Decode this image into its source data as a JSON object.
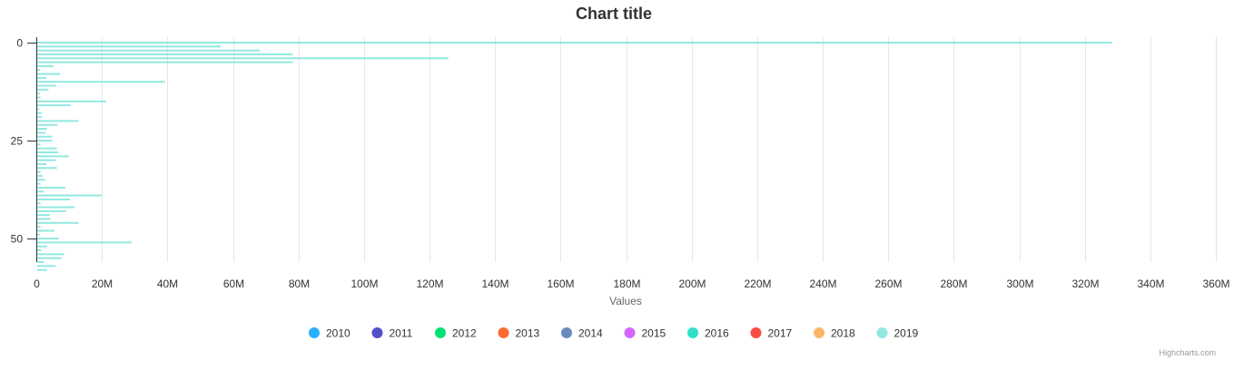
{
  "chart_data": {
    "type": "bar",
    "orientation": "horizontal",
    "title": "Chart title",
    "xlabel": "Values",
    "ylabel": "",
    "value_axis": {
      "min": 0,
      "max": 360000000,
      "ticks": [
        0,
        20000000,
        40000000,
        60000000,
        80000000,
        100000000,
        120000000,
        140000000,
        160000000,
        180000000,
        200000000,
        220000000,
        240000000,
        260000000,
        280000000,
        300000000,
        320000000,
        340000000,
        360000000
      ],
      "tick_labels": [
        "0",
        "20M",
        "40M",
        "60M",
        "80M",
        "100M",
        "120M",
        "140M",
        "160M",
        "180M",
        "200M",
        "220M",
        "240M",
        "260M",
        "280M",
        "300M",
        "320M",
        "340M",
        "360M"
      ],
      "grid": true
    },
    "category_axis": {
      "min": 0,
      "max": 56,
      "ticks": [
        0,
        25,
        50
      ],
      "tick_labels": [
        "0",
        "25",
        "50"
      ]
    },
    "legend": {
      "placement": "bottom-center",
      "items": [
        {
          "name": "2010",
          "color": "#2caffe"
        },
        {
          "name": "2011",
          "color": "#544fc5"
        },
        {
          "name": "2012",
          "color": "#00e272"
        },
        {
          "name": "2013",
          "color": "#fe6a35"
        },
        {
          "name": "2014",
          "color": "#6b8abc"
        },
        {
          "name": "2015",
          "color": "#d568fb"
        },
        {
          "name": "2016",
          "color": "#2ee0ca"
        },
        {
          "name": "2017",
          "color": "#fa4b42"
        },
        {
          "name": "2018",
          "color": "#feb56a"
        },
        {
          "name": "2019",
          "color": "#91e8e1"
        }
      ]
    },
    "series": [
      {
        "name": "2019",
        "color": "#91e8e1",
        "values": [
          328000000,
          56000000,
          68000000,
          78000000,
          125500000,
          78000000,
          5000000,
          800000,
          7000000,
          2800000,
          39000000,
          5800000,
          3400000,
          800000,
          1000000,
          21000000,
          10200000,
          600000,
          1400000,
          1400000,
          12600000,
          6200000,
          3000000,
          2600000,
          4600000,
          4600000,
          1000000,
          6000000,
          6400000,
          9600000,
          5600000,
          2800000,
          6000000,
          1000000,
          1600000,
          2400000,
          1000000,
          8600000,
          2000000,
          19800000,
          10000000,
          1000000,
          11400000,
          8800000,
          3800000,
          4000000,
          12600000,
          1000000,
          5200000,
          800000,
          6600000,
          28800000,
          3000000,
          1200000,
          8200000,
          7400000,
          2000000,
          5600000,
          3000000
        ]
      }
    ],
    "credits": "Highcharts.com"
  }
}
